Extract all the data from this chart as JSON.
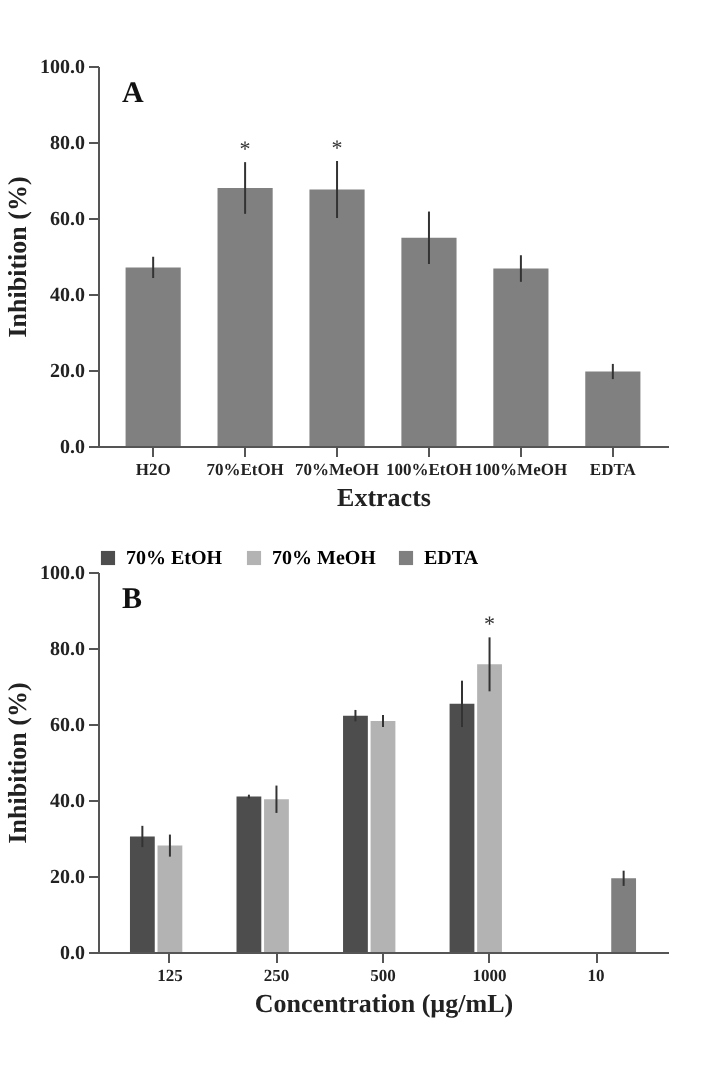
{
  "chart_data": [
    {
      "type": "bar",
      "title": "A",
      "xlabel": "Extracts",
      "ylabel": "Inhibition (%)",
      "categories": [
        "H2O",
        "70%EtOH",
        "70%MeOH",
        "100%EtOH",
        "100%MeOH",
        "EDTA"
      ],
      "values": [
        47.0,
        67.9,
        67.5,
        54.8,
        46.7,
        19.6
      ],
      "errors": [
        2.8,
        6.8,
        7.5,
        6.9,
        3.5,
        2.0
      ],
      "color": "#808080",
      "ylim": [
        0,
        100
      ],
      "yticks": [
        {
          "value": 0,
          "label": "0.0"
        },
        {
          "value": 20,
          "label": "20.0"
        },
        {
          "value": 40,
          "label": "40.0"
        },
        {
          "value": 60,
          "label": "60.0"
        },
        {
          "value": 80,
          "label": "80.0"
        },
        {
          "value": 100,
          "label": "100.0"
        }
      ],
      "grid": false,
      "legend": false,
      "annotations": [
        {
          "text": "*",
          "x": "70%EtOH",
          "y": 74.7
        },
        {
          "text": "*",
          "x": "70%MeOH",
          "y": 75.0
        }
      ]
    },
    {
      "type": "bar",
      "title": "B",
      "xlabel": "Concentration (µg/mL)",
      "ylabel": "Inhibition (%)",
      "categories": [
        "125",
        "250",
        "500",
        "1000",
        "10"
      ],
      "series": [
        {
          "name": "70% EtOH",
          "color": "#4d4d4d",
          "values": [
            30.4,
            40.9,
            62.2,
            65.3,
            null
          ],
          "errors": [
            2.8,
            0.5,
            1.5,
            6.1,
            null
          ]
        },
        {
          "name": "70% MeOH",
          "color": "#b3b3b3",
          "values": [
            28.0,
            40.2,
            60.8,
            75.7,
            null
          ],
          "errors": [
            2.9,
            3.6,
            1.6,
            7.1,
            null
          ]
        },
        {
          "name": "EDTA",
          "color": "#7f7f7f",
          "values": [
            null,
            null,
            null,
            null,
            19.4
          ],
          "errors": [
            null,
            null,
            null,
            null,
            2.0
          ]
        }
      ],
      "ylim": [
        0,
        100
      ],
      "yticks": [
        {
          "value": 0,
          "label": "0.0"
        },
        {
          "value": 20,
          "label": "20.0"
        },
        {
          "value": 40,
          "label": "40.0"
        },
        {
          "value": 60,
          "label": "60.0"
        },
        {
          "value": 80,
          "label": "80.0"
        },
        {
          "value": 100,
          "label": "100.0"
        }
      ],
      "grid": false,
      "legend": "top",
      "annotations": [
        {
          "text": "*",
          "x": "1000",
          "y": 82.8
        }
      ]
    }
  ]
}
